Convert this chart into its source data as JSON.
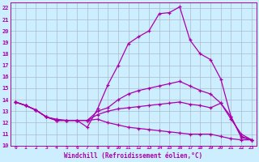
{
  "background_color": "#cceeff",
  "grid_color": "#aabbcc",
  "line_color": "#aa00aa",
  "xlim": [
    -0.5,
    23.5
  ],
  "ylim": [
    10,
    22.5
  ],
  "xtick_labels": [
    "0",
    "1",
    "2",
    "3",
    "4",
    "5",
    "6",
    "7",
    "8",
    "9",
    "10",
    "11",
    "12",
    "13",
    "14",
    "15",
    "16",
    "17",
    "18",
    "19",
    "20",
    "21",
    "22",
    "23"
  ],
  "xtick_vals": [
    0,
    1,
    2,
    3,
    4,
    5,
    6,
    7,
    8,
    9,
    10,
    11,
    12,
    13,
    14,
    15,
    16,
    17,
    18,
    19,
    20,
    21,
    22,
    23
  ],
  "ytick_vals": [
    10,
    11,
    12,
    13,
    14,
    15,
    16,
    17,
    18,
    19,
    20,
    21,
    22
  ],
  "xlabel": "Windchill (Refroidissement éolien,°C)",
  "series": [
    {
      "x": [
        0,
        1,
        2,
        3,
        4,
        5,
        6,
        7,
        8,
        9,
        10,
        11,
        12,
        13,
        14,
        15,
        16,
        17,
        18,
        19,
        20,
        21,
        22,
        23
      ],
      "y": [
        13.8,
        13.5,
        13.1,
        12.5,
        12.2,
        12.2,
        12.2,
        11.6,
        13.2,
        15.3,
        17.0,
        18.9,
        19.5,
        20.0,
        21.5,
        21.6,
        22.1,
        19.2,
        18.0,
        17.5,
        15.8,
        12.5,
        10.7,
        10.5
      ]
    },
    {
      "x": [
        0,
        1,
        2,
        3,
        4,
        5,
        6,
        7,
        8,
        9,
        10,
        11,
        12,
        13,
        14,
        15,
        16,
        17,
        18,
        19,
        20,
        21,
        22,
        23
      ],
      "y": [
        13.8,
        13.5,
        13.1,
        12.5,
        12.2,
        12.2,
        12.2,
        12.2,
        13.0,
        13.3,
        14.0,
        14.5,
        14.8,
        15.0,
        15.2,
        15.4,
        15.6,
        15.2,
        14.8,
        14.5,
        13.7,
        12.5,
        10.8,
        10.5
      ]
    },
    {
      "x": [
        0,
        1,
        2,
        3,
        4,
        5,
        6,
        7,
        8,
        9,
        10,
        11,
        12,
        13,
        14,
        15,
        16,
        17,
        18,
        19,
        20,
        21,
        22,
        23
      ],
      "y": [
        13.8,
        13.5,
        13.1,
        12.5,
        12.3,
        12.2,
        12.2,
        12.2,
        12.7,
        13.0,
        13.2,
        13.3,
        13.4,
        13.5,
        13.6,
        13.7,
        13.8,
        13.6,
        13.5,
        13.3,
        13.7,
        12.3,
        11.0,
        10.5
      ]
    },
    {
      "x": [
        0,
        1,
        2,
        3,
        4,
        5,
        6,
        7,
        8,
        9,
        10,
        11,
        12,
        13,
        14,
        15,
        16,
        17,
        18,
        19,
        20,
        21,
        22,
        23
      ],
      "y": [
        13.8,
        13.5,
        13.1,
        12.5,
        12.2,
        12.2,
        12.2,
        12.2,
        12.3,
        12.0,
        11.8,
        11.6,
        11.5,
        11.4,
        11.3,
        11.2,
        11.1,
        11.0,
        11.0,
        11.0,
        10.8,
        10.6,
        10.5,
        10.5
      ]
    }
  ]
}
